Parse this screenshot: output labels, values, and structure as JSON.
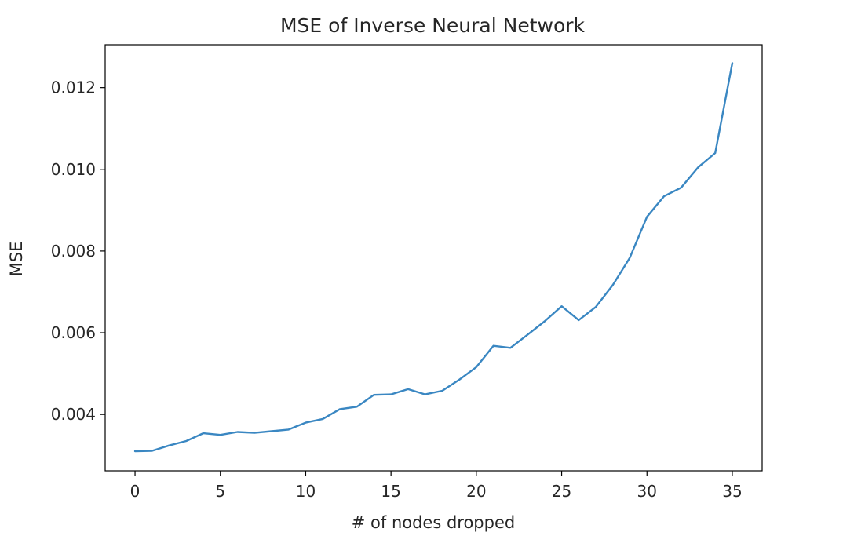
{
  "chart_data": {
    "type": "line",
    "title": "MSE of Inverse Neural Network",
    "xlabel": "# of nodes dropped",
    "ylabel": "MSE",
    "xlim": [
      -1.75,
      36.75
    ],
    "ylim": [
      0.00262,
      0.01305
    ],
    "xticks": [
      0,
      5,
      10,
      15,
      20,
      25,
      30,
      35
    ],
    "yticks": [
      0.004,
      0.006,
      0.008,
      0.01,
      0.012
    ],
    "ytick_labels": [
      "0.004",
      "0.006",
      "0.008",
      "0.010",
      "0.012"
    ],
    "grid": false,
    "series": [
      {
        "color": "#3a87c2",
        "x": [
          0,
          1,
          2,
          3,
          4,
          5,
          6,
          7,
          8,
          9,
          10,
          11,
          12,
          13,
          14,
          15,
          16,
          17,
          18,
          19,
          20,
          21,
          22,
          23,
          24,
          25,
          26,
          27,
          28,
          29,
          30,
          31,
          32,
          33,
          34,
          35
        ],
        "values": [
          0.0031,
          0.00311,
          0.00324,
          0.00335,
          0.00354,
          0.0035,
          0.00357,
          0.00355,
          0.00359,
          0.00363,
          0.0038,
          0.00389,
          0.00413,
          0.00419,
          0.00448,
          0.00449,
          0.00462,
          0.00449,
          0.00458,
          0.00485,
          0.00516,
          0.00568,
          0.00563,
          0.00595,
          0.00628,
          0.00665,
          0.00631,
          0.00663,
          0.00717,
          0.00784,
          0.00884,
          0.00934,
          0.00955,
          0.01005,
          0.0104,
          0.0126
        ]
      }
    ]
  }
}
